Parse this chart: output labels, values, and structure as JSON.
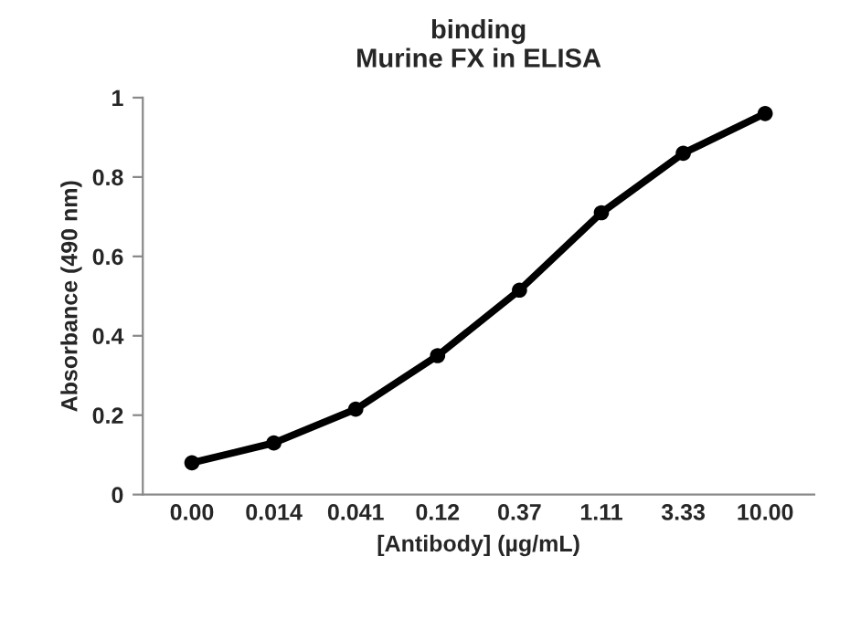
{
  "chart_data": {
    "type": "line",
    "title": "binding\nMurine FX in ELISA",
    "xlabel": "[Antibody] (µg/mL)",
    "ylabel": "Absorbance (490 nm)",
    "categories": [
      "0.00",
      "0.014",
      "0.041",
      "0.12",
      "0.37",
      "1.11",
      "3.33",
      "10.00"
    ],
    "series": [
      {
        "color": "#000000",
        "values": [
          0.08,
          0.13,
          0.215,
          0.35,
          0.515,
          0.71,
          0.86,
          0.96
        ]
      }
    ],
    "ylim": [
      0,
      1
    ],
    "yticks": [
      0,
      0.2,
      0.4,
      0.6,
      0.8,
      1
    ],
    "marker": "circle",
    "line_style": "solid",
    "grid": false,
    "legend": false
  }
}
